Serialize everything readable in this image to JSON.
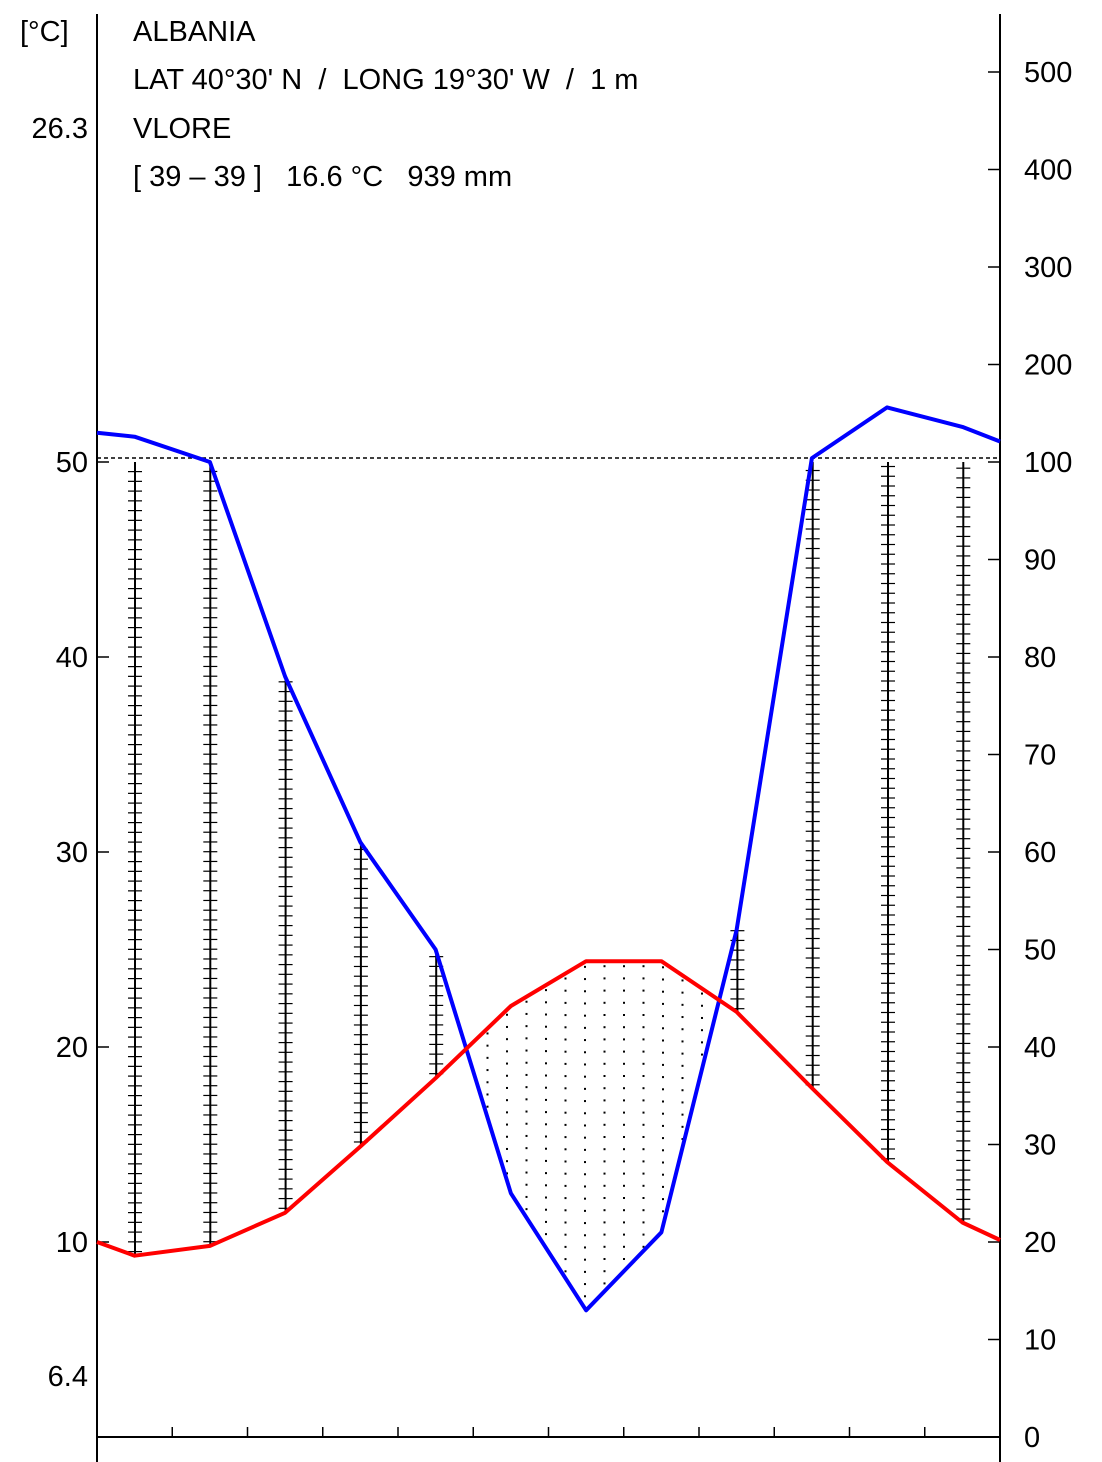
{
  "header": {
    "left_unit": "[°C]",
    "temp_max_label": "26.3",
    "temp_min_label": "6.4",
    "country": "ALBANIA",
    "coords": "LAT 40°30' N  /  LONG 19°30' W  /  1 m",
    "station": "VLORE",
    "summary": "[ 39 – 39 ]   16.6 °C   939 mm"
  },
  "chart_data": {
    "type": "line",
    "title": "",
    "x": [
      1,
      2,
      3,
      4,
      5,
      6,
      7,
      8,
      9,
      10,
      11,
      12
    ],
    "xlim": [
      0.5,
      12.5
    ],
    "left_axis": {
      "ticks": [
        10,
        20,
        30,
        40,
        50
      ],
      "range": [
        0,
        73.5
      ]
    },
    "right_axis": {
      "ticks": [
        0,
        10,
        20,
        30,
        40,
        50,
        60,
        70,
        80,
        90,
        100,
        200,
        300,
        400,
        500
      ],
      "linear_range": [
        0,
        100
      ],
      "compressed_above": 100,
      "compressed_ratio": 0.1
    },
    "reference_line": {
      "value": 100,
      "style": "dashed"
    },
    "series": [
      {
        "name": "",
        "axis": "left",
        "color": "#ff0000",
        "values": [
          9.3,
          9.8,
          11.5,
          14.9,
          18.4,
          22.1,
          24.4,
          24.4,
          21.8,
          17.9,
          14.1,
          11.0
        ]
      },
      {
        "name": "",
        "axis": "right",
        "color": "#0000ff",
        "values": [
          126,
          100,
          78,
          61,
          50,
          25,
          13,
          21,
          52,
          104,
          156,
          136
        ]
      }
    ],
    "edge_values": {
      "temperature_left": 10.0,
      "temperature_right": 10.1,
      "precipitation_left": 130,
      "precipitation_right": 121
    }
  }
}
